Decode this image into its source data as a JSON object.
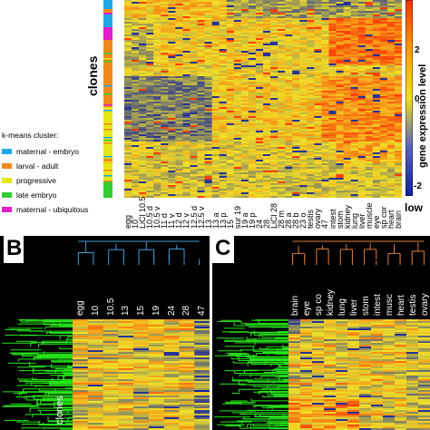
{
  "chart_data": {
    "type": "heatmap",
    "panel_a": {
      "ylabel": "clones",
      "columns": [
        "egg",
        "10",
        "LiCl 10.5",
        "10.5 d",
        "10.5 v",
        "11 d",
        "11 v",
        "12 d",
        "12 v",
        "12.5 d",
        "12.5 v",
        "13",
        "13 a",
        "13 p",
        "15",
        "sur 19",
        "19 a",
        "19 p",
        "24",
        "28",
        "LiCl 28",
        "28 m",
        "28 a",
        "28 b",
        "23 o",
        "testis",
        "ovary",
        "47",
        "intest",
        "stom",
        "kidney",
        "lung",
        "liver",
        "muscle",
        "eye",
        "sp cor",
        "heart",
        "brain"
      ],
      "colorbar": {
        "label": "gene expression level",
        "ticks": [
          "2",
          "0",
          "-2"
        ],
        "low": "low"
      },
      "legend_title": "k-means cluster:",
      "clusters": [
        {
          "name": "maternal - embryo",
          "color": "#1fa8e8"
        },
        {
          "name": "larval - adult",
          "color": "#f08a1c"
        },
        {
          "name": "progressive",
          "color": "#e6e61a"
        },
        {
          "name": "late embryo",
          "color": "#33cc33"
        },
        {
          "name": "maternal - ubiquitous",
          "color": "#e020c8"
        }
      ]
    },
    "panel_b": {
      "letter": "B",
      "columns": [
        "egg",
        "10",
        "10.5",
        "13",
        "15",
        "19",
        "24",
        "28",
        "47"
      ],
      "ylabel": "clones"
    },
    "panel_c": {
      "letter": "C",
      "columns": [
        "brain",
        "eye",
        "sp co",
        "kidney",
        "lung",
        "liver",
        "stom",
        "intest",
        "musc",
        "heart",
        "testis",
        "ovary"
      ]
    }
  }
}
